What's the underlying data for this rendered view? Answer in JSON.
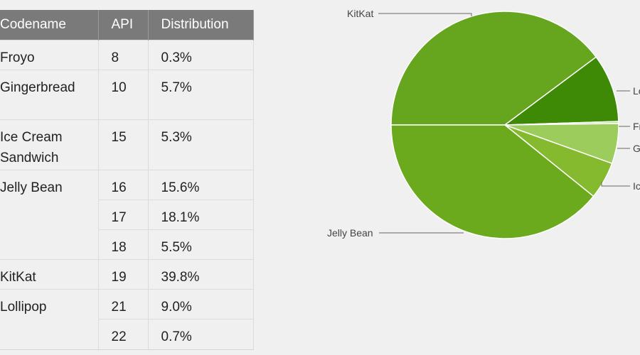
{
  "table": {
    "headers": [
      "Codename",
      "API",
      "Distribution"
    ],
    "rows": [
      {
        "codename": "Froyo",
        "api": "8",
        "distribution": "0.3%"
      },
      {
        "codename": "Gingerbread",
        "api": "10",
        "distribution": "5.7%"
      },
      {
        "codename": "Ice Cream Sandwich",
        "api": "15",
        "distribution": "5.3%"
      },
      {
        "codename": "Jelly Bean",
        "api": "16",
        "distribution": "15.6%"
      },
      {
        "codename": "",
        "api": "17",
        "distribution": "18.1%"
      },
      {
        "codename": "",
        "api": "18",
        "distribution": "5.5%"
      },
      {
        "codename": "KitKat",
        "api": "19",
        "distribution": "39.8%"
      },
      {
        "codename": "Lollipop",
        "api": "21",
        "distribution": "9.0%"
      },
      {
        "codename": "",
        "api": "22",
        "distribution": "0.7%"
      }
    ]
  },
  "chart_data": {
    "type": "pie",
    "labels": [
      "KitKat",
      "Lollipop",
      "Froyo",
      "Gingerbread",
      "Ice Cream Sandwich",
      "Jelly Bean"
    ],
    "display_labels": [
      "KitKat",
      "Lo",
      "Fr",
      "G",
      "Ic",
      "Jelly Bean"
    ],
    "values": [
      39.8,
      9.7,
      0.3,
      5.7,
      5.3,
      39.2
    ],
    "colors": [
      "#66a61e",
      "#3e8a06",
      "#c0dd9a",
      "#9ccc5c",
      "#86ba2e",
      "#6aaa1c"
    ]
  }
}
